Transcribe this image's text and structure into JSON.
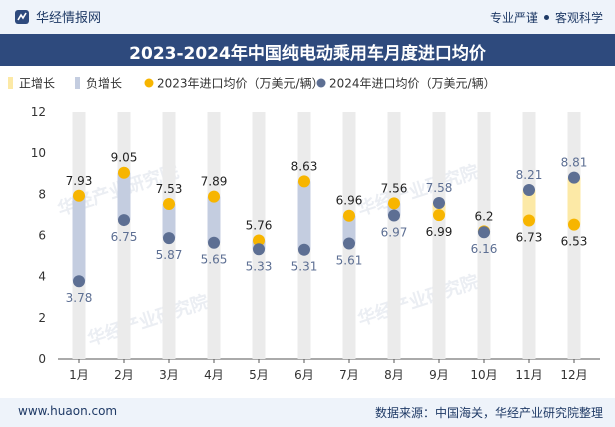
{
  "header": {
    "brand": "华经情报网",
    "tag1": "专业严谨",
    "tag2": "客观科学"
  },
  "title": "2023-2024年中国纯电动乘用车月度进口均价",
  "footer": {
    "site": "www.huaon.com",
    "source": "数据来源：中国海关，华经产业研究院整理"
  },
  "watermark": "华经产业研究院",
  "colors": {
    "up": "#fce9a6",
    "down": "#c4cde0",
    "series2023": "#f7b500",
    "series2024": "#5d6f93",
    "track": "#ebebeb"
  },
  "chart_data": {
    "type": "line",
    "title": "2023-2024年中国纯电动乘用车月度进口均价",
    "categories": [
      "1月",
      "2月",
      "3月",
      "4月",
      "5月",
      "6月",
      "7月",
      "8月",
      "9月",
      "10月",
      "11月",
      "12月"
    ],
    "series": [
      {
        "name": "2023年进口均价（万美元/辆）",
        "values": [
          7.93,
          9.05,
          7.53,
          7.89,
          5.76,
          8.63,
          6.96,
          7.56,
          6.99,
          6.2,
          6.73,
          6.53
        ]
      },
      {
        "name": "2024年进口均价（万美元/辆）",
        "values": [
          3.78,
          6.75,
          5.87,
          5.65,
          5.33,
          5.31,
          5.61,
          6.97,
          7.58,
          6.16,
          8.21,
          8.81
        ]
      }
    ],
    "legend": [
      "正增长",
      "负增长",
      "2023年进口均价（万美元/辆）",
      "2024年进口均价（万美元/辆）"
    ],
    "ylim": [
      0,
      12
    ],
    "yticks": [
      0,
      2,
      4,
      6,
      8,
      10,
      12
    ],
    "xlabel": "",
    "ylabel": "",
    "legend_position": "top-left"
  }
}
